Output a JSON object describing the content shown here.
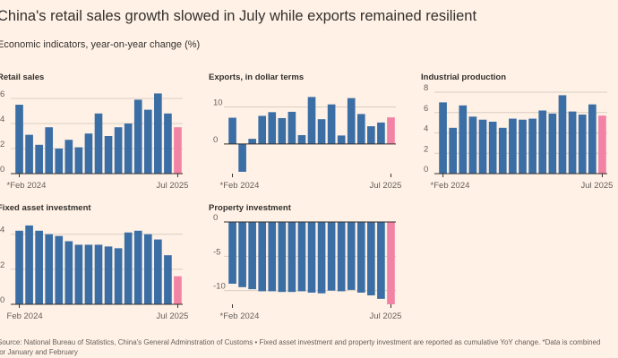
{
  "title": "China's retail sales growth slowed in July while exports remained resilient",
  "subtitle": "Economic indicators, year-on-year change (%)",
  "source": {
    "line1": "Source: National Bureau of Statistics, China's General Adminstration of Customs • Fixed asset investment and property investment are reported as cumulative YoY change. *Data is combined",
    "line2": "for January and February"
  },
  "colors": {
    "bar": "#3a6ea5",
    "highlight": "#f283a5",
    "grid": "#d9cec4",
    "axis": "#33302e"
  },
  "chart_data": [
    {
      "type": "bar",
      "title": "Retail sales",
      "x_start_label": "*Feb 2024",
      "x_end_label": "Jul 2025",
      "ylim": [
        0,
        6.5
      ],
      "yticks": [
        0,
        2,
        4,
        6
      ],
      "values": [
        5.5,
        3.1,
        2.3,
        3.7,
        2.0,
        2.7,
        2.1,
        3.2,
        4.8,
        3.0,
        3.7,
        4.0,
        5.9,
        5.1,
        6.4,
        4.8,
        3.7
      ],
      "highlight_last": true
    },
    {
      "type": "bar",
      "title": "Exports, in dollar terms",
      "x_start_label": "*Feb 2024",
      "x_end_label": "Jul 2025",
      "ylim": [
        -8,
        14
      ],
      "yticks": [
        0,
        10
      ],
      "values": [
        7.1,
        -7.5,
        1.4,
        7.6,
        8.6,
        7.0,
        8.7,
        2.4,
        12.7,
        6.7,
        10.7,
        2.3,
        12.4,
        8.1,
        4.8,
        5.8,
        7.2
      ],
      "highlight_last": true
    },
    {
      "type": "bar",
      "title": "Industrial production",
      "x_start_label": "*Feb 2024",
      "x_end_label": "Jul 2025",
      "ylim": [
        0,
        8
      ],
      "yticks": [
        0,
        2,
        4,
        6,
        8
      ],
      "values": [
        7.0,
        4.5,
        6.7,
        5.6,
        5.3,
        5.1,
        4.5,
        5.4,
        5.3,
        5.4,
        6.2,
        5.9,
        7.7,
        6.1,
        5.8,
        6.8,
        5.7
      ],
      "highlight_last": true
    },
    {
      "type": "bar",
      "title": "Fixed asset investment",
      "x_start_label": "Feb 2024",
      "x_end_label": "Jul 2025",
      "ylim": [
        0,
        4.7
      ],
      "yticks": [
        0,
        2,
        4
      ],
      "values": [
        4.2,
        4.5,
        4.2,
        4.0,
        3.9,
        3.6,
        3.4,
        3.4,
        3.4,
        3.3,
        3.2,
        4.1,
        4.2,
        4.0,
        3.7,
        2.8,
        1.6
      ],
      "highlight_last": true
    },
    {
      "type": "bar",
      "title": "Property investment",
      "x_start_label": "*Feb 2024",
      "x_end_label": "Jul 2025",
      "ylim": [
        -12,
        0
      ],
      "yticks": [
        0,
        -5,
        -10
      ],
      "values": [
        -9.0,
        -9.5,
        -9.8,
        -10.1,
        -10.1,
        -10.2,
        -10.2,
        -10.1,
        -10.3,
        -10.4,
        -10.0,
        -10.1,
        -9.9,
        -10.3,
        -10.7,
        -11.2,
        -12.0
      ],
      "highlight_last": true
    }
  ]
}
